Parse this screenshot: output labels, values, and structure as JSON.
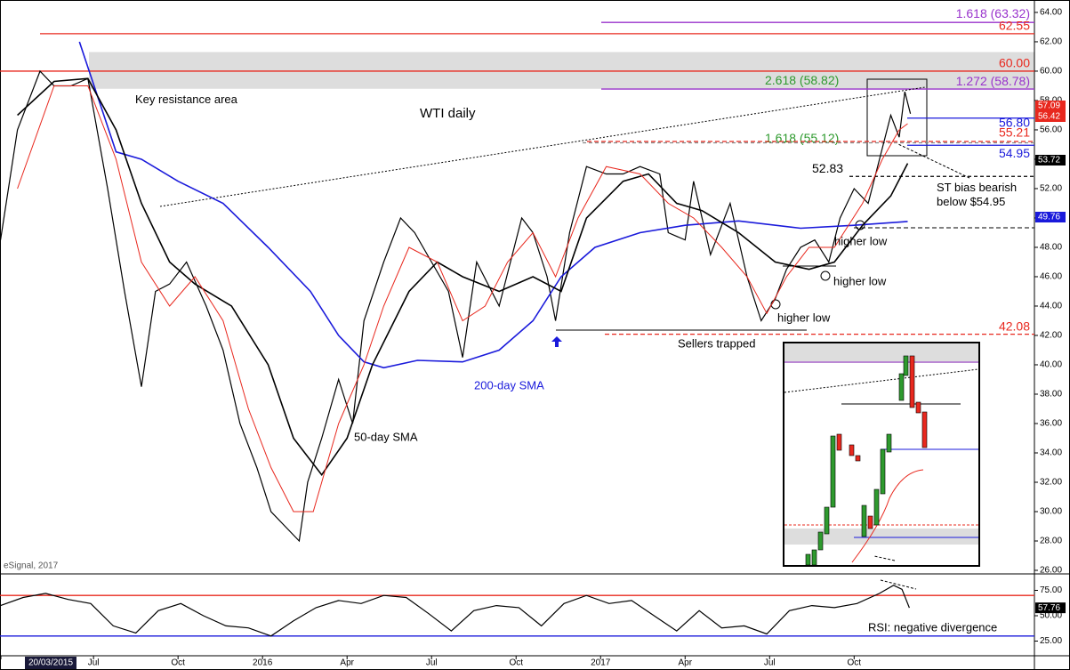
{
  "chart_data": [
    {
      "type": "line",
      "title": "WTI daily",
      "source": "eSignal, 2017",
      "xlim": [
        2.68,
        39.4
      ],
      "ylim": [
        26,
        64.3
      ],
      "yticks": [
        {
          "value": 26,
          "label": "26.00"
        },
        {
          "value": 28,
          "label": "28.00"
        },
        {
          "value": 30,
          "label": "30.00"
        },
        {
          "value": 32,
          "label": "32.00"
        },
        {
          "value": 34,
          "label": "34.00"
        },
        {
          "value": 36,
          "label": "36.00"
        },
        {
          "value": 38,
          "label": "38.00"
        },
        {
          "value": 40,
          "label": "40.00"
        },
        {
          "value": 42,
          "label": "42.00"
        },
        {
          "value": 44,
          "label": "44.00"
        },
        {
          "value": 46,
          "label": "46.00"
        },
        {
          "value": 48,
          "label": "48.00"
        },
        {
          "value": 50,
          "label": "50.00"
        },
        {
          "value": 52,
          "label": "52.00"
        },
        {
          "value": 54,
          "label": "54.00"
        },
        {
          "value": 56,
          "label": "56.00"
        },
        {
          "value": 58,
          "label": "58.00"
        },
        {
          "value": 60,
          "label": "60.00"
        },
        {
          "value": 62,
          "label": "62.00"
        },
        {
          "value": 64,
          "label": "64.00"
        }
      ],
      "series": [
        {
          "name": "WTI",
          "color": "#000000",
          "x": [
            2.7,
            3.3,
            4.1,
            4.6,
            5.2,
            5.8,
            6.5,
            7.1,
            7.7,
            8.2,
            8.7,
            9.3,
            10.0,
            10.6,
            11.2,
            11.8,
            12.3,
            12.8,
            13.3,
            13.6,
            14.1,
            14.7,
            15.2,
            15.6,
            16.3,
            16.9,
            17.4,
            18.0,
            18.6,
            19.1,
            19.6,
            20.4,
            21.2,
            21.6,
            22.1,
            22.4,
            22.9,
            23.5,
            24.2,
            24.8,
            25.4,
            26.1,
            26.4,
            27.0,
            27.3,
            27.9,
            28.6,
            29.2,
            29.7,
            30.2,
            30.6,
            31.1,
            31.6,
            32.1,
            32.5,
            33.0,
            33.5,
            33.9,
            34.3,
            34.6,
            34.8,
            35.0
          ],
          "values": [
            48.5,
            56,
            60,
            59,
            59,
            59.5,
            52,
            45,
            38.5,
            45,
            45.5,
            47,
            44,
            41,
            36,
            33,
            30,
            29,
            28,
            32,
            35,
            39,
            36,
            43,
            47,
            50,
            49,
            47,
            45,
            40.5,
            47,
            44,
            50,
            49,
            46,
            43,
            49,
            53.5,
            53,
            53,
            53.5,
            53,
            49,
            48.5,
            52.5,
            47.5,
            51,
            46,
            43,
            44.5,
            46.5,
            48,
            48.5,
            47,
            50,
            52,
            51,
            54,
            57,
            55.5,
            58.6,
            57.1
          ]
        },
        {
          "name": "200-day SMA",
          "color": "#1a1adb",
          "x": [
            5.5,
            6.8,
            7.7,
            9.0,
            10.6,
            12.2,
            13.7,
            14.7,
            15.6,
            16.3,
            17.5,
            19.1,
            20.4,
            21.6,
            22.6,
            23.8,
            25.4,
            27.0,
            28.9,
            31.1,
            33.0,
            34.9
          ],
          "values": [
            62,
            54.5,
            54,
            52.5,
            51,
            48,
            45,
            42,
            40.2,
            39.8,
            40.3,
            40.2,
            41,
            43,
            46,
            48,
            49,
            49.5,
            49.8,
            49.3,
            49.5,
            49.76
          ]
        },
        {
          "name": "50-day SMA",
          "color": "#000000",
          "x": [
            3.3,
            4.6,
            5.8,
            6.8,
            7.7,
            8.7,
            9.6,
            10.9,
            12.2,
            13.1,
            14.1,
            15.0,
            15.9,
            17.2,
            18.2,
            19.1,
            20.4,
            21.6,
            22.6,
            23.5,
            24.8,
            25.7,
            26.7,
            27.6,
            28.9,
            30.2,
            31.4,
            32.3,
            33.3,
            34.3,
            34.9
          ],
          "values": [
            57,
            59.3,
            59.5,
            56,
            51,
            47,
            45.5,
            44,
            40,
            35,
            32.5,
            35,
            40,
            45,
            47,
            46,
            45,
            46,
            45,
            50,
            52.5,
            53,
            51,
            50.5,
            49,
            47,
            46.5,
            47,
            49.5,
            51.5,
            53.72
          ]
        },
        {
          "color": "#e8281e",
          "x": [
            3.3,
            4.6,
            5.8,
            6.8,
            7.7,
            8.7,
            9.6,
            10.6,
            11.5,
            12.3,
            13.1,
            13.8,
            14.7,
            15.6,
            16.3,
            17.2,
            18.2,
            19.1,
            19.9,
            20.7,
            21.6,
            22.4,
            23.2,
            24.2,
            25.4,
            26.4,
            27.3,
            28.3,
            29.2,
            29.9,
            30.6,
            31.4,
            32.3,
            33.3,
            34.0,
            34.6,
            34.9
          ],
          "values": [
            52,
            59,
            59,
            54,
            47,
            44,
            46,
            43,
            37,
            33,
            30,
            30,
            36,
            40,
            44,
            48,
            47,
            43,
            44,
            47,
            49,
            46,
            50,
            53.5,
            53,
            51,
            50,
            48,
            46,
            43.5,
            46,
            48,
            48,
            51,
            54,
            56,
            56.42
          ]
        }
      ],
      "resistance_zone": [
        58.8,
        61.3
      ],
      "levels": [
        {
          "label": "1.618 (63.32)",
          "value": 63.32,
          "color": "#9933cc"
        },
        {
          "label": "62.55",
          "value": 62.55,
          "color": "#e8281e"
        },
        {
          "label": "60.00",
          "value": 60,
          "color": "#e8281e"
        },
        {
          "label": "1.272 (58.78)",
          "value": 58.78,
          "color": "#9933cc"
        },
        {
          "label": "2.618 (58.82)",
          "value": 58.82,
          "color": "#2e9a2e"
        },
        {
          "label": "1.618 (55.12)",
          "value": 55.12,
          "color": "#2e9a2e"
        },
        {
          "label": "56.80",
          "value": 56.8,
          "color": "#1a1adb"
        },
        {
          "label": "55.21",
          "value": 55.21,
          "color": "#e8281e"
        },
        {
          "label": "54.95",
          "value": 54.95,
          "color": "#1a1adb"
        },
        {
          "label": "52.83",
          "value": 52.83,
          "color": "#000000"
        },
        {
          "label": "42.08",
          "value": 42.08,
          "color": "#e8281e"
        }
      ],
      "badges": [
        {
          "value": 57.09,
          "color": "#e8281e"
        },
        {
          "value": 56.42,
          "color": "#e8281e"
        },
        {
          "value": 53.72,
          "color": "#000000"
        },
        {
          "value": 49.76,
          "color": "#1a1adb"
        }
      ],
      "annotations": [
        "Key resistance area",
        "ST bias bearish below $54.95",
        "higher low",
        "higher low",
        "higher low",
        "Sellers trapped",
        "200-day SMA",
        "50-day SMA"
      ]
    },
    {
      "type": "line",
      "annotation": "RSI: negative divergence",
      "xlim": [
        2.68,
        39.4
      ],
      "ylim": [
        12.3,
        91.2
      ],
      "xticks": [
        {
          "value": 2.65,
          "label": "20/03/2015"
        },
        {
          "value": 6,
          "label": "Jul"
        },
        {
          "value": 9,
          "label": "Oct"
        },
        {
          "value": 12,
          "label": "2016"
        },
        {
          "value": 15,
          "label": "Apr"
        },
        {
          "value": 18,
          "label": "Jul"
        },
        {
          "value": 21,
          "label": "Oct"
        },
        {
          "value": 24,
          "label": "2017"
        },
        {
          "value": 27,
          "label": "Apr"
        },
        {
          "value": 30,
          "label": "Jul"
        },
        {
          "value": 33,
          "label": "Oct"
        }
      ],
      "yticks": [
        {
          "value": 25,
          "label": "25.00"
        },
        {
          "value": 50,
          "label": "50.00"
        },
        {
          "value": 75,
          "label": "75.00"
        }
      ],
      "levels": [
        {
          "value": 70,
          "color": "#e8281e"
        },
        {
          "value": 30,
          "color": "#1a1adb"
        }
      ],
      "badge": 57.76,
      "series": [
        {
          "name": "RSI",
          "color": "#000000",
          "x": [
            2.7,
            3.5,
            4.3,
            5.1,
            5.9,
            6.7,
            7.5,
            8.3,
            9.1,
            9.9,
            10.7,
            11.5,
            12.3,
            13.1,
            13.9,
            14.7,
            15.5,
            16.3,
            17.1,
            17.9,
            18.7,
            19.5,
            20.3,
            21.1,
            21.9,
            22.7,
            23.5,
            24.3,
            25.1,
            25.9,
            26.7,
            27.5,
            28.3,
            29.1,
            29.9,
            30.7,
            31.5,
            32.3,
            33.1,
            33.9,
            34.4,
            34.7,
            34.96
          ],
          "values": [
            60,
            68,
            72,
            66,
            62,
            40,
            33,
            55,
            62,
            50,
            40,
            38,
            30,
            45,
            58,
            65,
            62,
            70,
            68,
            52,
            35,
            55,
            60,
            58,
            40,
            62,
            70,
            62,
            65,
            50,
            35,
            55,
            38,
            40,
            32,
            55,
            60,
            58,
            62,
            72,
            80,
            76,
            57.76
          ]
        }
      ]
    }
  ]
}
